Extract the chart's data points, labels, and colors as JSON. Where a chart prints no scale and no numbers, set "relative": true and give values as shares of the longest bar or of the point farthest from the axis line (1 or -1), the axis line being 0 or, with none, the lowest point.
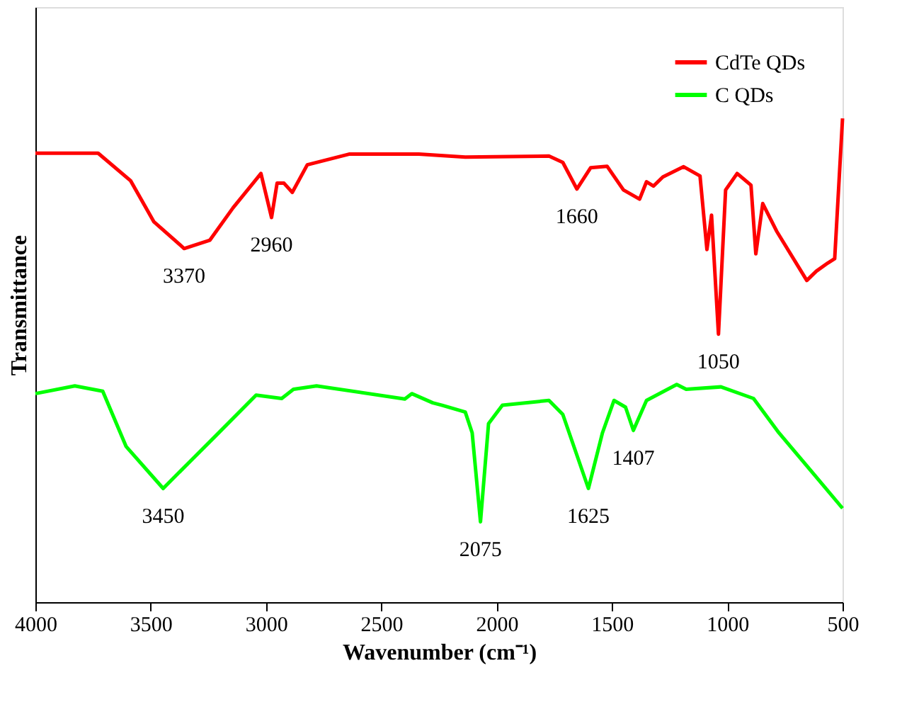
{
  "chart_data": {
    "type": "line",
    "relative": true,
    "xlabel": "Wavenumber (cm⁻¹)",
    "ylabel": "Transmittance",
    "xlim": [
      4000,
      500
    ],
    "xticks": [
      4000,
      3500,
      3000,
      2500,
      2000,
      1500,
      1000,
      500
    ],
    "tick_labels": "x",
    "grid": false,
    "legend": "top right",
    "marker": "none",
    "line_style": "solid",
    "series": [
      {
        "name": "CdTe QDs",
        "color": "#ff0000",
        "x": [
          4000,
          3728,
          3587,
          3486,
          3355,
          3244,
          3143,
          3022,
          2976,
          2952,
          2922,
          2886,
          2821,
          2640,
          2337,
          2136,
          1773,
          1713,
          1652,
          1592,
          1521,
          1450,
          1380,
          1350,
          1320,
          1279,
          1189,
          1118,
          1088,
          1068,
          1038,
          1007,
          957,
          897,
          876,
          846,
          786,
          655,
          614,
          564,
          534,
          500
        ],
        "values": [
          0.928,
          0.928,
          0.871,
          0.786,
          0.731,
          0.748,
          0.815,
          0.886,
          0.795,
          0.866,
          0.866,
          0.847,
          0.904,
          0.926,
          0.926,
          0.92,
          0.922,
          0.909,
          0.854,
          0.898,
          0.901,
          0.852,
          0.833,
          0.869,
          0.86,
          0.879,
          0.9,
          0.881,
          0.729,
          0.8,
          0.554,
          0.852,
          0.886,
          0.862,
          0.72,
          0.824,
          0.767,
          0.665,
          0.684,
          0.701,
          0.71,
          1.0
        ]
      },
      {
        "name": "C QDs",
        "color": "#00ff00",
        "x": [
          4000,
          3829,
          3708,
          3607,
          3446,
          3325,
          3224,
          3043,
          2932,
          2881,
          2781,
          2398,
          2368,
          2277,
          2236,
          2136,
          2106,
          2070,
          2035,
          1975,
          1773,
          1713,
          1602,
          1541,
          1491,
          1441,
          1407,
          1350,
          1219,
          1178,
          1027,
          886,
          776,
          625,
          500
        ],
        "values": [
          0.431,
          0.447,
          0.436,
          0.322,
          0.235,
          0.293,
          0.341,
          0.428,
          0.421,
          0.44,
          0.447,
          0.42,
          0.431,
          0.412,
          0.407,
          0.393,
          0.35,
          0.166,
          0.369,
          0.407,
          0.417,
          0.388,
          0.235,
          0.35,
          0.417,
          0.403,
          0.355,
          0.417,
          0.45,
          0.44,
          0.445,
          0.421,
          0.35,
          0.265,
          0.194
        ]
      }
    ],
    "annotations": [
      {
        "text": "3370",
        "x": 3355,
        "y": 0.731
      },
      {
        "text": "2960",
        "x": 2976,
        "y": 0.795
      },
      {
        "text": "1660",
        "x": 1652,
        "y": 0.854
      },
      {
        "text": "1050",
        "x": 1038,
        "y": 0.554
      },
      {
        "text": "3450",
        "x": 3446,
        "y": 0.235
      },
      {
        "text": "2075",
        "x": 2070,
        "y": 0.166
      },
      {
        "text": "1625",
        "x": 1602,
        "y": 0.235
      },
      {
        "text": "1407",
        "x": 1407,
        "y": 0.355
      }
    ]
  }
}
